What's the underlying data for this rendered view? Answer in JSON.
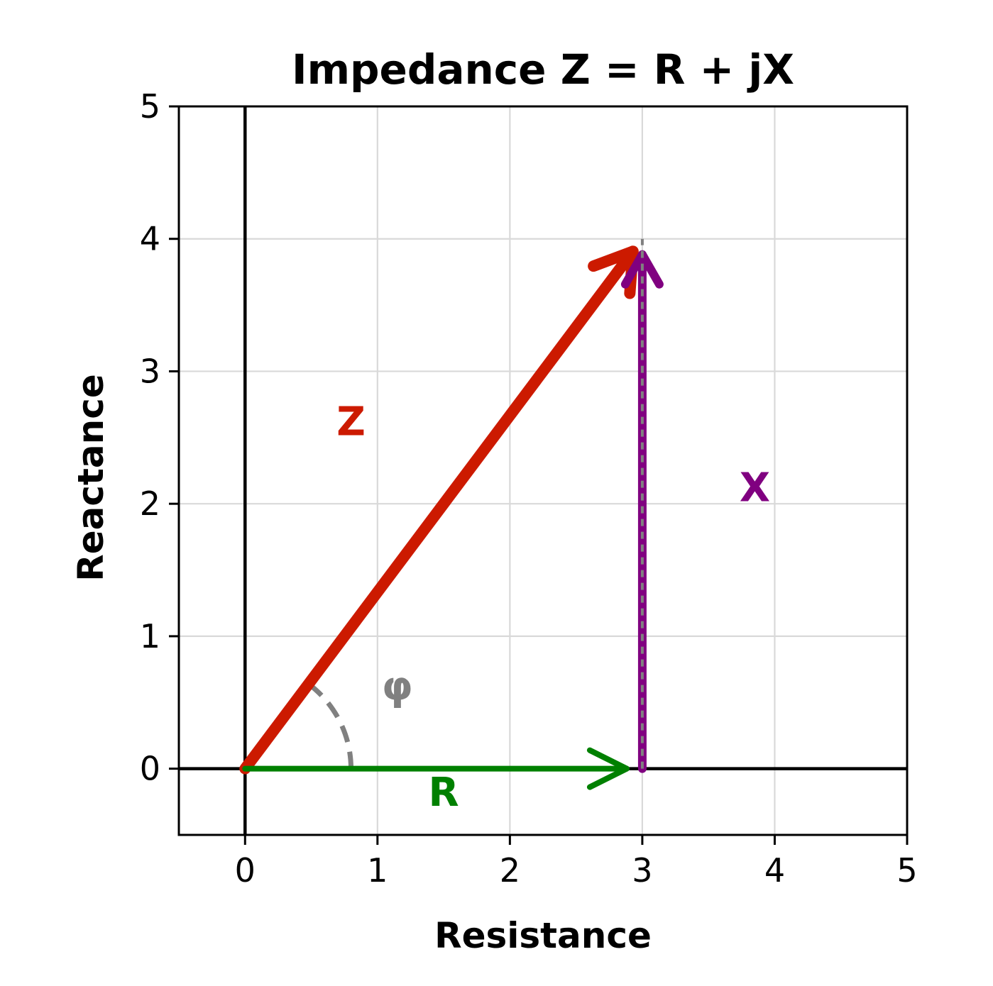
{
  "chart_data": {
    "type": "vector-diagram",
    "title": "Impedance Z = R + jX",
    "xlabel": "Resistance",
    "ylabel": "Reactance",
    "xlim": [
      -0.5,
      5
    ],
    "ylim": [
      -0.5,
      5
    ],
    "xticks": [
      0,
      1,
      2,
      3,
      4,
      5
    ],
    "yticks": [
      0,
      1,
      2,
      3,
      4,
      5
    ],
    "grid": true,
    "vectors": [
      {
        "name": "Z",
        "from": [
          0,
          0
        ],
        "to": [
          3,
          4
        ],
        "color": "#cc1a00",
        "label_at": [
          0.8,
          2.6
        ]
      },
      {
        "name": "R",
        "from": [
          0,
          0
        ],
        "to": [
          3,
          0
        ],
        "color": "#008000",
        "label_at": [
          1.5,
          -0.2
        ]
      },
      {
        "name": "X",
        "from": [
          3,
          0
        ],
        "to": [
          3,
          4
        ],
        "color": "#800080",
        "label_at": [
          3.85,
          2.1
        ]
      }
    ],
    "angle": {
      "name": "φ",
      "radius": 0.8,
      "from_deg": 0,
      "to_deg": 53.13,
      "color": "#808080",
      "label_at": [
        1.15,
        0.6
      ]
    },
    "projection_line": {
      "from": [
        3,
        0
      ],
      "to": [
        3,
        4
      ],
      "color": "#808080"
    }
  }
}
